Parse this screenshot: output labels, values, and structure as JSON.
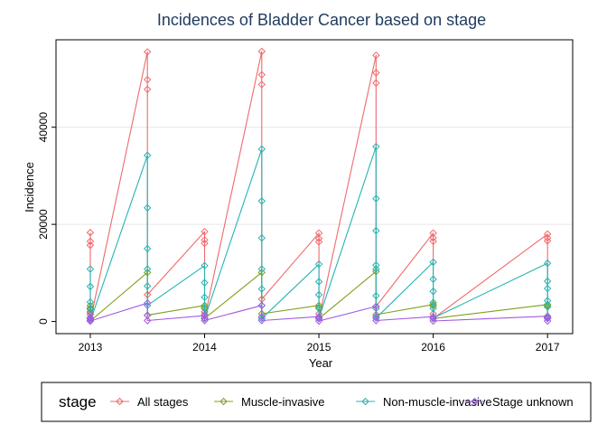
{
  "chart_data": {
    "type": "line",
    "title": "Incidences of Bladder Cancer based on stage",
    "xlabel": "Year",
    "ylabel": "Incidence",
    "x_ticks": [
      2013,
      2014,
      2015,
      2016,
      2017
    ],
    "y_ticks": [
      0,
      20000,
      40000
    ],
    "xlim": [
      2012.7,
      2017.22
    ],
    "ylim": [
      -2500,
      58000
    ],
    "grid": "y-major",
    "legend_title": "stage",
    "legend_position": "bottom",
    "series": [
      {
        "name": "All stages",
        "color": "#f0696b",
        "points": [
          [
            2013,
            18300
          ],
          [
            2013,
            16500
          ],
          [
            2013,
            15700
          ],
          [
            2013,
            2800
          ],
          [
            2013,
            1800
          ],
          [
            2013,
            600
          ],
          [
            2013,
            100
          ],
          [
            2013.5,
            55500
          ],
          [
            2013.5,
            49800
          ],
          [
            2013.5,
            47800
          ],
          [
            2013.5,
            5500
          ],
          [
            2014,
            18500
          ],
          [
            2014,
            16800
          ],
          [
            2014,
            16100
          ],
          [
            2014,
            2000
          ],
          [
            2014,
            1500
          ],
          [
            2014,
            600
          ],
          [
            2014.5,
            55600
          ],
          [
            2014.5,
            50800
          ],
          [
            2014.5,
            48800
          ],
          [
            2014.5,
            4600
          ],
          [
            2015,
            18200
          ],
          [
            2015,
            17100
          ],
          [
            2015,
            16400
          ],
          [
            2015,
            1600
          ],
          [
            2015,
            600
          ],
          [
            2015.5,
            54800
          ],
          [
            2015.5,
            51200
          ],
          [
            2015.5,
            49100
          ],
          [
            2015.5,
            3100
          ],
          [
            2016,
            18200
          ],
          [
            2016,
            17200
          ],
          [
            2016,
            16500
          ],
          [
            2016,
            1600
          ],
          [
            2016,
            600
          ],
          [
            2017,
            18000
          ],
          [
            2017,
            17200
          ],
          [
            2017,
            16600
          ],
          [
            2017,
            900
          ]
        ]
      },
      {
        "name": "Muscle-invasive",
        "color": "#7fa01d",
        "points": [
          [
            2013,
            3300
          ],
          [
            2013,
            2600
          ],
          [
            2013,
            2000
          ],
          [
            2013,
            700
          ],
          [
            2013,
            100
          ],
          [
            2013.5,
            10100
          ],
          [
            2013.5,
            1300
          ],
          [
            2014,
            3300
          ],
          [
            2014,
            2900
          ],
          [
            2014,
            600
          ],
          [
            2014.5,
            10100
          ],
          [
            2014.5,
            1600
          ],
          [
            2015,
            3300
          ],
          [
            2015,
            2900
          ],
          [
            2015,
            600
          ],
          [
            2015.5,
            10300
          ],
          [
            2015.5,
            1400
          ],
          [
            2016,
            3500
          ],
          [
            2016,
            3200
          ],
          [
            2016,
            600
          ],
          [
            2017,
            3500
          ],
          [
            2017,
            3200
          ],
          [
            2017,
            700
          ]
        ]
      },
      {
        "name": "Non-muscle-invasive",
        "color": "#25b4b4",
        "points": [
          [
            2013,
            10800
          ],
          [
            2013,
            7200
          ],
          [
            2013,
            4000
          ],
          [
            2013,
            2500
          ],
          [
            2013,
            700
          ],
          [
            2013,
            100
          ],
          [
            2013.5,
            34200
          ],
          [
            2013.5,
            23400
          ],
          [
            2013.5,
            15000
          ],
          [
            2013.5,
            10800
          ],
          [
            2013.5,
            7300
          ],
          [
            2013.5,
            3300
          ],
          [
            2014,
            11500
          ],
          [
            2014,
            8000
          ],
          [
            2014,
            5000
          ],
          [
            2014,
            2700
          ],
          [
            2014,
            600
          ],
          [
            2014.5,
            35500
          ],
          [
            2014.5,
            24800
          ],
          [
            2014.5,
            17200
          ],
          [
            2014.5,
            10800
          ],
          [
            2014.5,
            6700
          ],
          [
            2014.5,
            3300
          ],
          [
            2014.5,
            600
          ],
          [
            2015,
            11800
          ],
          [
            2015,
            8200
          ],
          [
            2015,
            5500
          ],
          [
            2015,
            2700
          ],
          [
            2015,
            700
          ],
          [
            2015.5,
            36000
          ],
          [
            2015.5,
            25300
          ],
          [
            2015.5,
            18700
          ],
          [
            2015.5,
            11600
          ],
          [
            2015.5,
            10800
          ],
          [
            2015.5,
            5300
          ],
          [
            2015.5,
            2700
          ],
          [
            2015.5,
            700
          ],
          [
            2016,
            12200
          ],
          [
            2016,
            8700
          ],
          [
            2016,
            6200
          ],
          [
            2016,
            3900
          ],
          [
            2016,
            2700
          ],
          [
            2016,
            700
          ],
          [
            2017,
            12000
          ],
          [
            2017,
            8300
          ],
          [
            2017,
            6800
          ],
          [
            2017,
            4300
          ],
          [
            2017,
            3000
          ],
          [
            2017,
            800
          ]
        ]
      },
      {
        "name": "Stage unknown",
        "color": "#a35ae3",
        "points": [
          [
            2013,
            1400
          ],
          [
            2013,
            800
          ],
          [
            2013,
            500
          ],
          [
            2013,
            200
          ],
          [
            2013,
            100
          ],
          [
            2013.5,
            3800
          ],
          [
            2013.5,
            1300
          ],
          [
            2013.5,
            200
          ],
          [
            2014,
            1200
          ],
          [
            2014,
            700
          ],
          [
            2014,
            200
          ],
          [
            2014.5,
            3300
          ],
          [
            2014.5,
            1000
          ],
          [
            2014.5,
            200
          ],
          [
            2015,
            1000
          ],
          [
            2015,
            600
          ],
          [
            2015,
            100
          ],
          [
            2015.5,
            3100
          ],
          [
            2015.5,
            1000
          ],
          [
            2015.5,
            200
          ],
          [
            2016,
            1000
          ],
          [
            2016,
            600
          ],
          [
            2016,
            100
          ],
          [
            2017,
            1100
          ],
          [
            2017,
            600
          ],
          [
            2017,
            100
          ]
        ]
      }
    ]
  }
}
